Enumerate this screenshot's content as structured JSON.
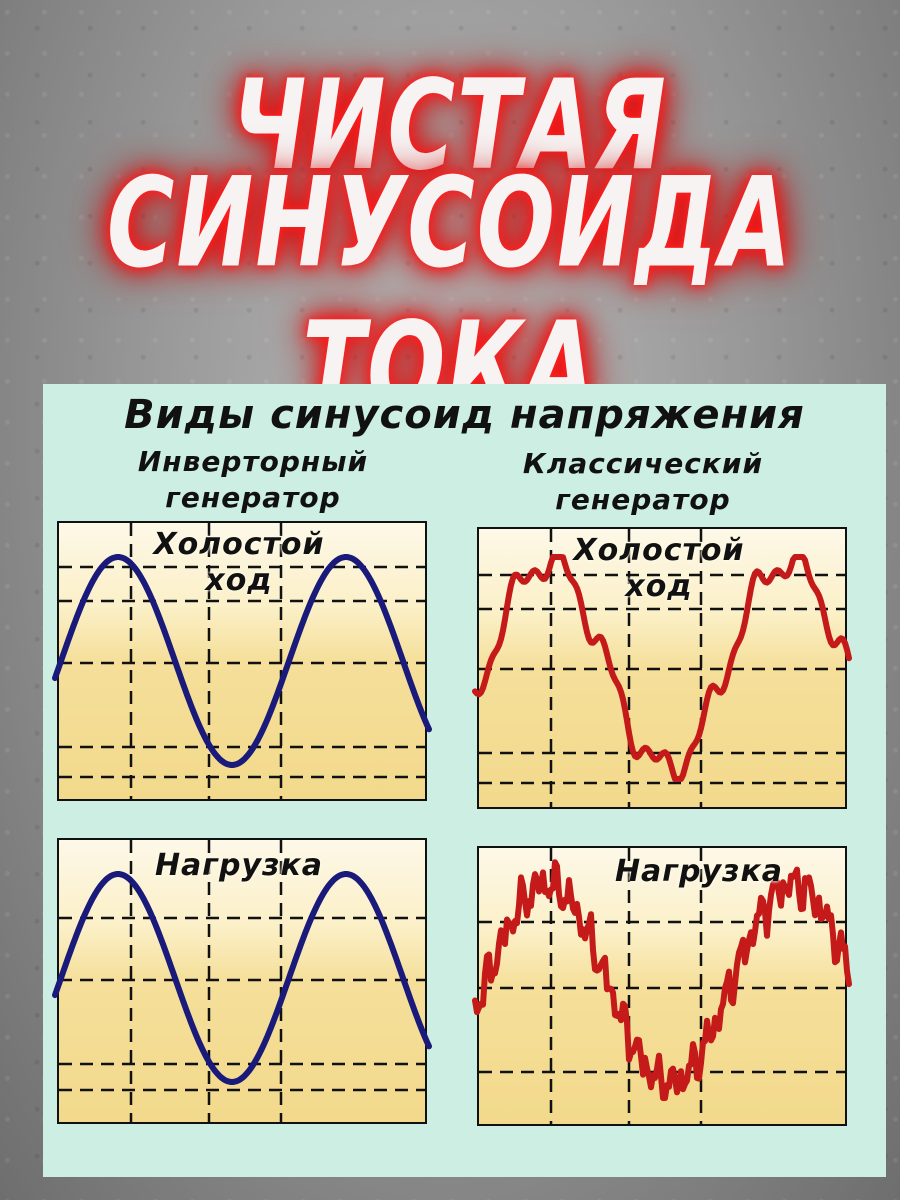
{
  "headline": {
    "line1": "ЧИСТАЯ",
    "line2": "СИНУСОИДА ТОКА",
    "glow_color": "#ff1a1a"
  },
  "diagram": {
    "title": "Виды синусоид напряжения",
    "columns": [
      {
        "heading_line1": "Инверторный",
        "heading_line2": "генератор",
        "wave_color": "#1a1a7a"
      },
      {
        "heading_line1": "Классический",
        "heading_line2": "генератор",
        "wave_color": "#c41a1a"
      }
    ],
    "panels": [
      {
        "id": "inverter-idle",
        "label_line1": "Холостой",
        "label_line2": "ход",
        "waveform": "pure-sine"
      },
      {
        "id": "classic-idle",
        "label_line1": "Холостой",
        "label_line2": "ход",
        "waveform": "distorted-sine"
      },
      {
        "id": "inverter-load",
        "label_line1": "Нагрузка",
        "label_line2": "",
        "waveform": "pure-sine"
      },
      {
        "id": "classic-load",
        "label_line1": "Нагрузка",
        "label_line2": "",
        "waveform": "heavily-distorted-sine"
      }
    ],
    "background_color": "#cdeee2"
  }
}
